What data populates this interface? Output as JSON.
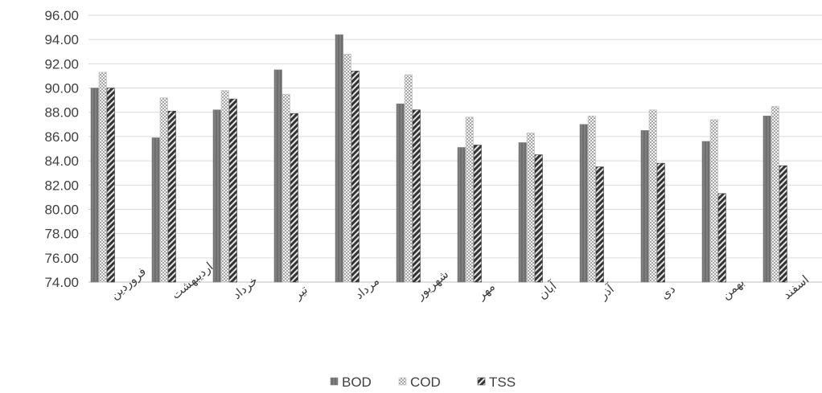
{
  "chart_data": {
    "type": "bar",
    "categories": [
      "فروردین",
      "اردیبهشت",
      "خرداد",
      "تیر",
      "مرداد",
      "شهریور",
      "مهر",
      "آبان",
      "آذر",
      "دی",
      "بهمن",
      "اسفند"
    ],
    "series": [
      {
        "name": "BOD",
        "values": [
          90.0,
          85.9,
          88.2,
          91.5,
          94.4,
          88.7,
          85.1,
          85.5,
          87.0,
          86.5,
          85.6,
          87.7
        ],
        "color": "#7f7f7f",
        "pattern": "solid"
      },
      {
        "name": "COD",
        "values": [
          91.3,
          89.2,
          89.8,
          89.5,
          92.8,
          91.1,
          87.6,
          86.3,
          87.7,
          88.2,
          87.4,
          88.5
        ],
        "color": "#bfbfbf",
        "pattern": "dotted-grid"
      },
      {
        "name": "TSS",
        "values": [
          90.0,
          88.1,
          89.1,
          87.9,
          91.4,
          88.2,
          85.3,
          84.5,
          83.5,
          83.8,
          81.3,
          83.6
        ],
        "color": "#404040",
        "pattern": "diagonal-hatch"
      }
    ],
    "ylim": [
      74.0,
      96.0
    ],
    "yticks": [
      "74.00",
      "76.00",
      "78.00",
      "80.00",
      "82.00",
      "84.00",
      "86.00",
      "88.00",
      "90.00",
      "92.00",
      "94.00",
      "96.00"
    ],
    "grid": true,
    "legend": "bottom-center"
  }
}
